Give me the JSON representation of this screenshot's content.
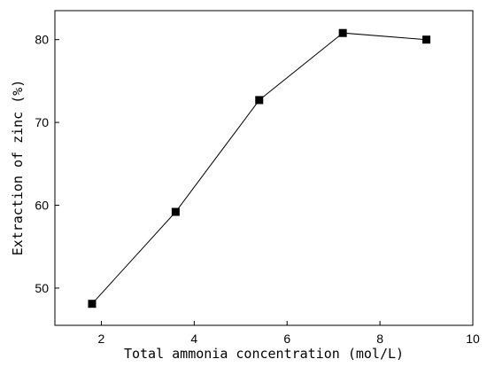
{
  "chart_data": {
    "type": "line",
    "xlabel": "Total ammonia concentration (mol/L)",
    "ylabel": "Extraction of zinc (%)",
    "xlim": [
      1,
      10
    ],
    "ylim": [
      45.5,
      83.5
    ],
    "xticks": [
      2,
      4,
      6,
      8,
      10
    ],
    "yticks": [
      50,
      60,
      70,
      80
    ],
    "grid": false,
    "marker": "square",
    "series": [
      {
        "x": [
          1.8,
          3.6,
          5.4,
          7.2,
          9.0
        ],
        "y": [
          48.1,
          59.2,
          72.7,
          80.8,
          80.0
        ]
      }
    ]
  }
}
